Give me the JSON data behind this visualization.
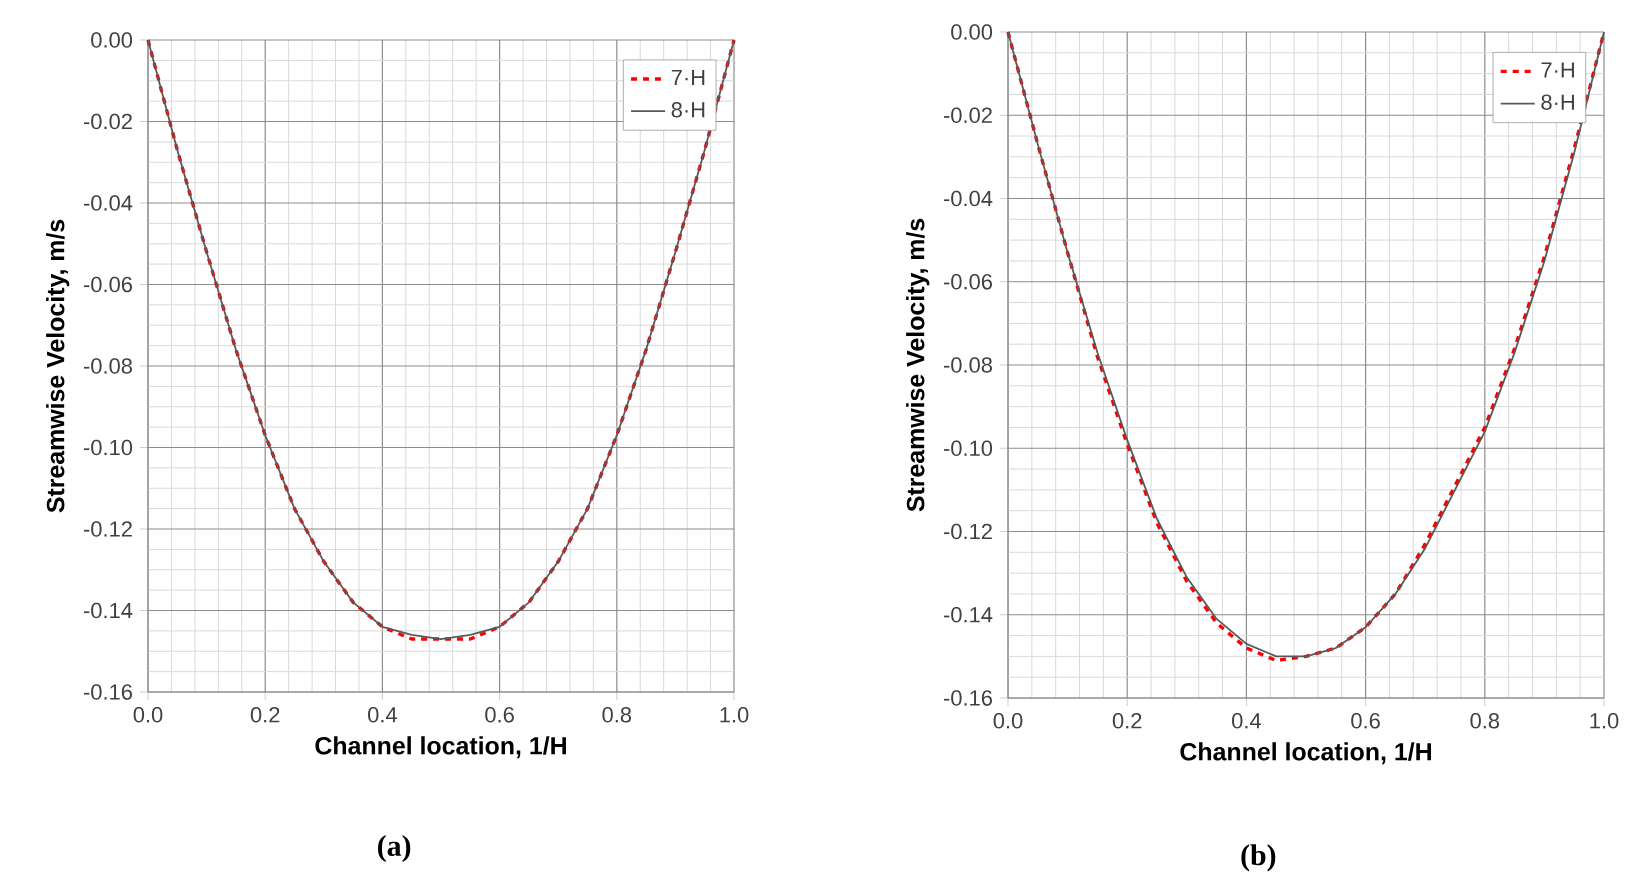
{
  "chart_data": [
    {
      "type": "line",
      "xlabel": "Channel location, 1/H",
      "ylabel": "Streamwise Velocity, m/s",
      "annotations": [
        "(a)"
      ],
      "x": [
        0,
        0.05,
        0.1,
        0.15,
        0.2,
        0.25,
        0.3,
        0.35,
        0.4,
        0.45,
        0.5,
        0.55,
        0.6,
        0.65,
        0.7,
        0.75,
        0.8,
        0.85,
        0.9,
        0.95,
        1.0
      ],
      "series": [
        {
          "name": "7·H",
          "color": "#ff0000",
          "line_style": "dashed",
          "values": [
            0,
            -0.027,
            -0.052,
            -0.076,
            -0.097,
            -0.115,
            -0.128,
            -0.138,
            -0.144,
            -0.147,
            -0.147,
            -0.147,
            -0.144,
            -0.138,
            -0.128,
            -0.115,
            -0.097,
            -0.076,
            -0.052,
            -0.027,
            0
          ]
        },
        {
          "name": "8·H",
          "color": "#595959",
          "line_style": "solid",
          "values": [
            0,
            -0.027,
            -0.052,
            -0.076,
            -0.097,
            -0.115,
            -0.128,
            -0.138,
            -0.144,
            -0.146,
            -0.147,
            -0.146,
            -0.144,
            -0.138,
            -0.128,
            -0.115,
            -0.097,
            -0.076,
            -0.052,
            -0.027,
            0
          ]
        }
      ],
      "xlim": [
        0,
        1.0
      ],
      "ylim": [
        -0.16,
        0
      ],
      "xticks": [
        {
          "value": 0,
          "label": "0.0"
        },
        {
          "value": 0.2,
          "label": "0.2"
        },
        {
          "value": 0.4,
          "label": "0.4"
        },
        {
          "value": 0.6,
          "label": "0.6"
        },
        {
          "value": 0.8,
          "label": "0.8"
        },
        {
          "value": 1.0,
          "label": "1.0"
        }
      ],
      "yticks": [
        {
          "value": -0.16,
          "label": "-0.16"
        },
        {
          "value": -0.14,
          "label": "-0.14"
        },
        {
          "value": -0.12,
          "label": "-0.12"
        },
        {
          "value": -0.1,
          "label": "-0.10"
        },
        {
          "value": -0.08,
          "label": "-0.08"
        },
        {
          "value": -0.06,
          "label": "-0.06"
        },
        {
          "value": -0.04,
          "label": "-0.04"
        },
        {
          "value": -0.02,
          "label": "-0.02"
        },
        {
          "value": 0,
          "label": "0.00"
        }
      ],
      "grid": true,
      "legend": "top right",
      "marker": "none"
    },
    {
      "type": "line",
      "xlabel": "Channel location, 1/H",
      "ylabel": "Streamwise Velocity, m/s",
      "annotations": [
        "(b)"
      ],
      "x": [
        0,
        0.05,
        0.1,
        0.15,
        0.2,
        0.25,
        0.3,
        0.35,
        0.4,
        0.45,
        0.5,
        0.55,
        0.6,
        0.65,
        0.7,
        0.75,
        0.8,
        0.85,
        0.9,
        0.95,
        1.0
      ],
      "series": [
        {
          "name": "7·H",
          "color": "#ff0000",
          "line_style": "dashed",
          "values": [
            0,
            -0.027,
            -0.053,
            -0.078,
            -0.099,
            -0.118,
            -0.132,
            -0.142,
            -0.148,
            -0.151,
            -0.15,
            -0.148,
            -0.143,
            -0.135,
            -0.123,
            -0.109,
            -0.095,
            -0.076,
            -0.054,
            -0.028,
            0
          ]
        },
        {
          "name": "8·H",
          "color": "#595959",
          "line_style": "solid",
          "values": [
            0,
            -0.027,
            -0.053,
            -0.077,
            -0.098,
            -0.117,
            -0.131,
            -0.141,
            -0.147,
            -0.15,
            -0.15,
            -0.148,
            -0.143,
            -0.135,
            -0.124,
            -0.11,
            -0.096,
            -0.077,
            -0.055,
            -0.029,
            0
          ]
        }
      ],
      "xlim": [
        0,
        1.0
      ],
      "ylim": [
        -0.16,
        0
      ],
      "xticks": [
        {
          "value": 0,
          "label": "0.0"
        },
        {
          "value": 0.2,
          "label": "0.2"
        },
        {
          "value": 0.4,
          "label": "0.4"
        },
        {
          "value": 0.6,
          "label": "0.6"
        },
        {
          "value": 0.8,
          "label": "0.8"
        },
        {
          "value": 1.0,
          "label": "1.0"
        }
      ],
      "yticks": [
        {
          "value": -0.16,
          "label": "-0.16"
        },
        {
          "value": -0.14,
          "label": "-0.14"
        },
        {
          "value": -0.12,
          "label": "-0.12"
        },
        {
          "value": -0.1,
          "label": "-0.10"
        },
        {
          "value": -0.08,
          "label": "-0.08"
        },
        {
          "value": -0.06,
          "label": "-0.06"
        },
        {
          "value": -0.04,
          "label": "-0.04"
        },
        {
          "value": -0.02,
          "label": "-0.02"
        },
        {
          "value": 0,
          "label": "0.00"
        }
      ],
      "grid": true,
      "legend": "top right",
      "marker": "none"
    }
  ]
}
